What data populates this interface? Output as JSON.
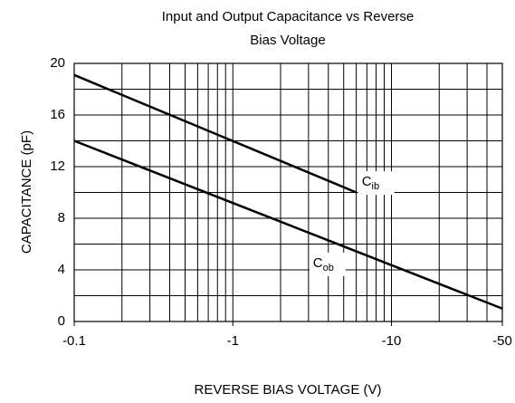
{
  "chart_data": {
    "type": "line",
    "title": "Input and Output Capacitance vs Reverse Bias Voltage",
    "x_label": "REVERSE BIAS VOLTAGE (V)",
    "y_label": "CAPACITANCE (pF)",
    "xscale": "log-magnitude",
    "xlim": [
      -0.1,
      -50
    ],
    "xticks": [
      -0.1,
      -1,
      -10,
      -50
    ],
    "xminor": [
      -0.2,
      -0.3,
      -0.4,
      -0.5,
      -0.6,
      -0.7,
      -0.8,
      -0.9,
      -2,
      -3,
      -4,
      -5,
      -6,
      -7,
      -8,
      -9,
      -20,
      -30,
      -40
    ],
    "ylim": [
      0,
      20
    ],
    "yticks": [
      0,
      4,
      8,
      12,
      16,
      20
    ],
    "yminor": [
      2,
      6,
      10,
      14,
      18
    ],
    "grid": true,
    "series": [
      {
        "name": "C",
        "subscript": "ib",
        "color": "#000000",
        "x": [
          -0.1,
          -6
        ],
        "values": [
          19.1,
          10
        ],
        "label_at": [
          -6.5,
          10.8
        ]
      },
      {
        "name": "C",
        "subscript": "ob",
        "color": "#000000",
        "x": [
          -0.1,
          -50
        ],
        "values": [
          14,
          1
        ],
        "label_at": [
          -3.2,
          4.5
        ]
      }
    ]
  }
}
